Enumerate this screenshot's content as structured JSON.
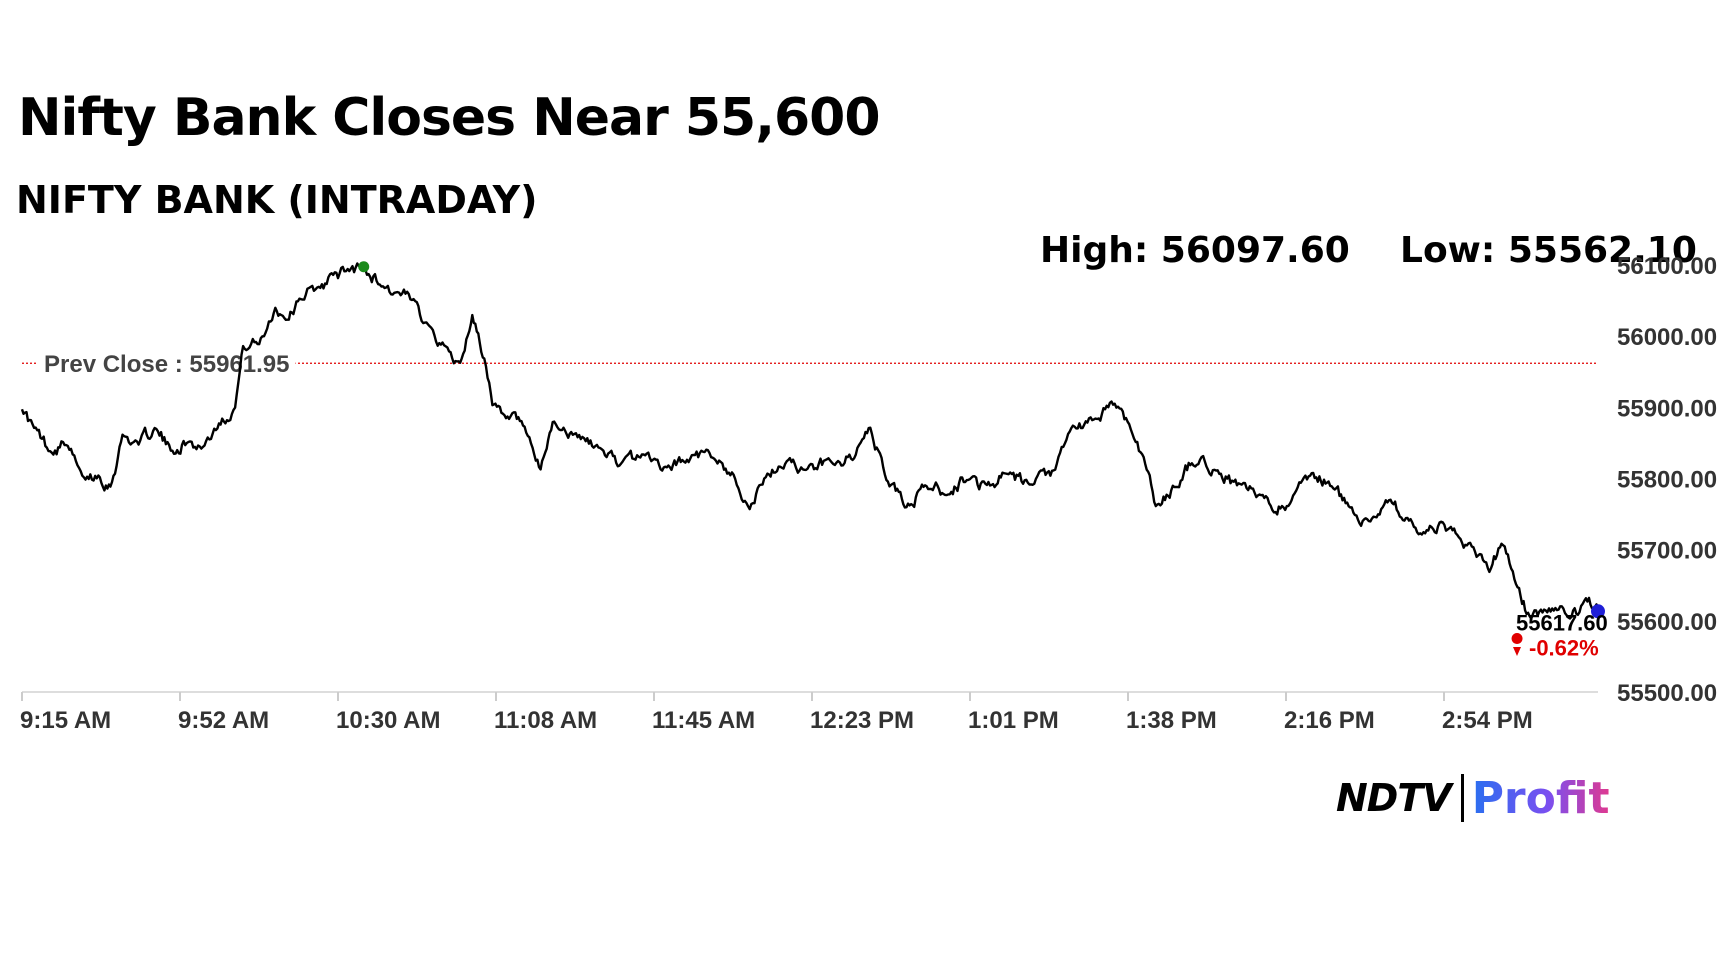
{
  "headline": "Nifty Bank Closes Near 55,600",
  "subhead": "NIFTY BANK (INTRADAY)",
  "high_label": "High: 56097.60",
  "low_label": "Low: 55562.10",
  "prev_close_label": "Prev Close : 55961.95",
  "last_value_label": "55617.60",
  "change_label": "-0.62%",
  "logo": {
    "brand": "NDTV",
    "product": "Profit"
  },
  "colors": {
    "line": "#000000",
    "prev_close_line": "#e00000",
    "high_marker": "#1a8a1a",
    "last_marker": "#1f1fd6",
    "change_text": "#e00000",
    "grid": "#dddddd"
  },
  "chart_data": {
    "type": "line",
    "title": "NIFTY BANK (INTRADAY)",
    "xlabel": "",
    "ylabel": "",
    "x_ticks": [
      "9:15 AM",
      "9:52 AM",
      "10:30 AM",
      "11:08 AM",
      "11:45 AM",
      "12:23 PM",
      "1:01 PM",
      "1:38 PM",
      "2:16 PM",
      "2:54 PM"
    ],
    "y_ticks": [
      "56100.00",
      "56000.00",
      "55900.00",
      "55800.00",
      "55700.00",
      "55600.00",
      "55500.00"
    ],
    "ylim": [
      55500,
      56100
    ],
    "high": 56097.6,
    "low": 55562.1,
    "prev_close": 55961.95,
    "last": 55617.6,
    "change_pct": -0.62,
    "grid": false,
    "series": [
      {
        "points": [
          [
            "9:15",
            55900
          ],
          [
            "9:18",
            55870
          ],
          [
            "9:22",
            55840
          ],
          [
            "9:26",
            55850
          ],
          [
            "9:30",
            55800
          ],
          [
            "9:34",
            55805
          ],
          [
            "9:37",
            55790
          ],
          [
            "9:40",
            55860
          ],
          [
            "9:44",
            55850
          ],
          [
            "9:48",
            55870
          ],
          [
            "9:52",
            55840
          ],
          [
            "9:56",
            55850
          ],
          [
            "10:00",
            55845
          ],
          [
            "10:04",
            55880
          ],
          [
            "10:08",
            55900
          ],
          [
            "10:10",
            55985
          ],
          [
            "10:14",
            55990
          ],
          [
            "10:18",
            56040
          ],
          [
            "10:21",
            56025
          ],
          [
            "10:24",
            56055
          ],
          [
            "10:28",
            56065
          ],
          [
            "10:32",
            56085
          ],
          [
            "10:36",
            56092
          ],
          [
            "10:40",
            56096
          ],
          [
            "10:44",
            56075
          ],
          [
            "10:48",
            56060
          ],
          [
            "10:52",
            56050
          ],
          [
            "10:56",
            56020
          ],
          [
            "11:00",
            55985
          ],
          [
            "11:04",
            55960
          ],
          [
            "11:07",
            56030
          ],
          [
            "11:10",
            55970
          ],
          [
            "11:12",
            55900
          ],
          [
            "11:15",
            55885
          ],
          [
            "11:20",
            55870
          ],
          [
            "11:24",
            55810
          ],
          [
            "11:27",
            55880
          ],
          [
            "11:32",
            55860
          ],
          [
            "11:38",
            55845
          ],
          [
            "11:44",
            55820
          ],
          [
            "11:50",
            55835
          ],
          [
            "11:55",
            55815
          ],
          [
            "12:00",
            55825
          ],
          [
            "12:06",
            55835
          ],
          [
            "12:12",
            55805
          ],
          [
            "12:16",
            55760
          ],
          [
            "12:20",
            55800
          ],
          [
            "12:26",
            55830
          ],
          [
            "12:30",
            55810
          ],
          [
            "12:36",
            55825
          ],
          [
            "12:42",
            55830
          ],
          [
            "12:46",
            55870
          ],
          [
            "12:50",
            55800
          ],
          [
            "12:55",
            55760
          ],
          [
            "13:00",
            55790
          ],
          [
            "13:05",
            55780
          ],
          [
            "13:10",
            55800
          ],
          [
            "13:15",
            55790
          ],
          [
            "13:20",
            55805
          ],
          [
            "13:26",
            55790
          ],
          [
            "13:32",
            55810
          ],
          [
            "13:36",
            55870
          ],
          [
            "13:42",
            55880
          ],
          [
            "13:46",
            55910
          ],
          [
            "13:50",
            55880
          ],
          [
            "13:54",
            55830
          ],
          [
            "13:57",
            55760
          ],
          [
            "14:02",
            55790
          ],
          [
            "14:06",
            55825
          ],
          [
            "14:12",
            55810
          ],
          [
            "14:18",
            55790
          ],
          [
            "14:24",
            55770
          ],
          [
            "14:30",
            55760
          ],
          [
            "14:35",
            55800
          ],
          [
            "14:40",
            55795
          ],
          [
            "14:45",
            55760
          ],
          [
            "14:50",
            55740
          ],
          [
            "14:55",
            55770
          ],
          [
            "15:00",
            55740
          ],
          [
            "15:04",
            55720
          ],
          [
            "15:08",
            55735
          ],
          [
            "15:12",
            55720
          ],
          [
            "15:16",
            55700
          ],
          [
            "15:20",
            55670
          ],
          [
            "15:23",
            55710
          ],
          [
            "15:27",
            55650
          ],
          [
            "15:30",
            55605
          ],
          [
            "15:34",
            55615
          ],
          [
            "15:38",
            55618
          ],
          [
            "15:42",
            55610
          ],
          [
            "15:44",
            55630
          ],
          [
            "15:47",
            55617.6
          ]
        ]
      }
    ]
  }
}
